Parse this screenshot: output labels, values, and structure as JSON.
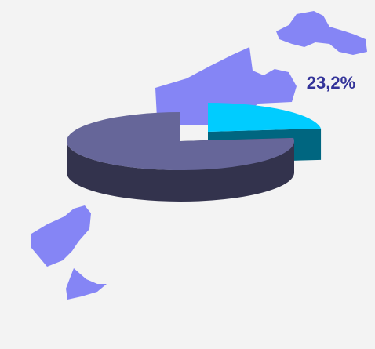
{
  "chart_data": {
    "type": "pie3d",
    "values": [
      23.2,
      76.8
    ],
    "value_labels": [
      "23,2%",
      null
    ],
    "colors": [
      "#00ccff",
      "#666699"
    ],
    "explode": [
      true,
      false
    ]
  }
}
